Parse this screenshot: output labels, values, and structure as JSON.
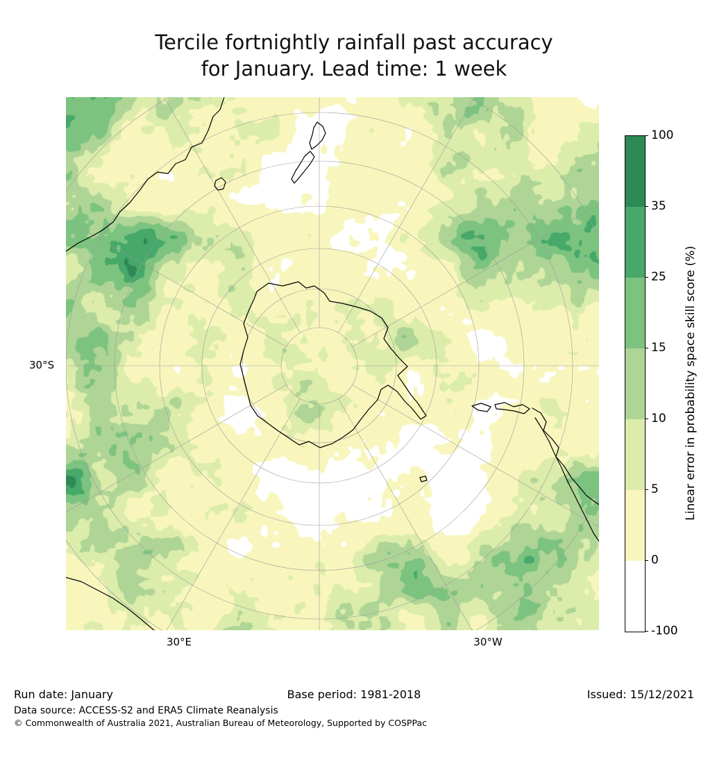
{
  "title": {
    "line1": "Tercile fortnightly rainfall past accuracy",
    "line2": "for January. Lead time: 1 week"
  },
  "map": {
    "lat_label": "30°S",
    "lon_labels": [
      {
        "text": "30°E"
      },
      {
        "text": "30°W"
      }
    ]
  },
  "footer": {
    "run_date": "Run date: January",
    "base_period": "Base period: 1981-2018",
    "issued": "Issued: 15/12/2021",
    "data_source": "Data source: ACCESS-S2 and ERA5 Climate Reanalysis",
    "copyright": "© Commonwealth of Australia 2021, Australian Bureau of Meteorology, Supported by COSPPac"
  },
  "chart_data": {
    "type": "heatmap",
    "title": "Tercile fortnightly rainfall past accuracy for January. Lead time: 1 week",
    "projection": "south polar stereographic, Antarctica centered, Southern Hemisphere to ~10S",
    "field_description": "Skill score field mostly 0-15% (pale yellow to light green) with scattered 15-35% green patches near map edges and occasional white (below 0) patches",
    "colorbar": {
      "label": "Linear error in probability space skill score (%)",
      "tick_labels": [
        "100",
        "35",
        "25",
        "15",
        "10",
        "5",
        "0",
        "-100"
      ],
      "levels": [
        -100,
        0,
        5,
        10,
        15,
        25,
        35,
        100
      ],
      "colors_bottom_to_top": [
        "#ffffff",
        "#f8f6bd",
        "#dcecab",
        "#aed596",
        "#7cc380",
        "#46a869",
        "#2d8a56"
      ],
      "legend_position": "right"
    },
    "gridlines": {
      "on": true,
      "parallels_every_deg": 10,
      "meridians_every_deg": 30,
      "color": "#9b9b9b"
    },
    "axis_labels": {
      "left": "30°S",
      "bottom": [
        "30°E",
        "30°W"
      ]
    },
    "coastlines": [
      "Antarctica",
      "Australia",
      "New Zealand",
      "South America",
      "Southern Africa"
    ]
  }
}
